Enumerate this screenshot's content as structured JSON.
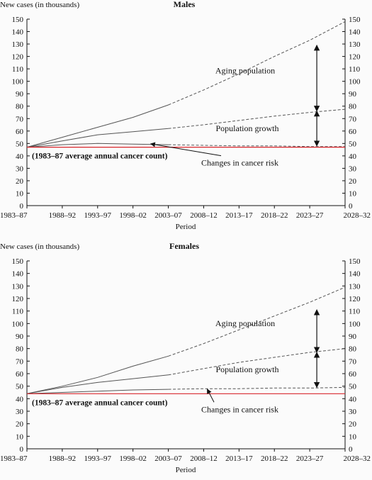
{
  "chart_data": [
    {
      "type": "line",
      "title": "Males",
      "ylabel": "New cases (in thousands)",
      "xlabel": "Period",
      "categories": [
        "1983–87",
        "1988–92",
        "1993–97",
        "1998–02",
        "2003–07",
        "2008–12",
        "2013–17",
        "2018–22",
        "2023–27",
        "2028–32"
      ],
      "ylim": [
        0,
        150
      ],
      "yticks": [
        0,
        10,
        20,
        30,
        40,
        50,
        60,
        70,
        80,
        90,
        100,
        110,
        120,
        130,
        140,
        150
      ],
      "series": [
        {
          "key": "aging",
          "style": "solid-then-dashed",
          "color": "#555555",
          "values": [
            47,
            55,
            63,
            71,
            81,
            93,
            106,
            120,
            133,
            148
          ]
        },
        {
          "key": "growth",
          "style": "solid-then-dashed",
          "color": "#555555",
          "values": [
            47,
            52,
            57,
            59.5,
            62,
            65,
            68.5,
            72,
            75,
            77.5
          ]
        },
        {
          "key": "risk",
          "style": "solid-then-dashed",
          "color": "#555555",
          "values": [
            47,
            49,
            50,
            49.5,
            49,
            48.5,
            48,
            48,
            47.5,
            47.5
          ]
        },
        {
          "key": "baseline",
          "style": "solid",
          "color": "#d9262c",
          "values": [
            47,
            47,
            47,
            47,
            47,
            47,
            47,
            47,
            47,
            47
          ]
        }
      ],
      "projection_start_index": 4,
      "annotations": {
        "aging": "Aging population",
        "growth": "Population growth",
        "risk": "Changes in cancer risk",
        "baseline": "(1983–87 average annual cancer count)"
      },
      "arrows": {
        "index": 8.2,
        "ends": [
          129,
          76,
          48
        ]
      }
    },
    {
      "type": "line",
      "title": "Females",
      "ylabel": "New cases (in thousands)",
      "xlabel": "Period",
      "categories": [
        "1983–87",
        "1988–92",
        "1993–97",
        "1998–02",
        "2003–07",
        "2008–12",
        "2013–17",
        "2018–22",
        "2023–27",
        "2028–32"
      ],
      "ylim": [
        0,
        150
      ],
      "yticks": [
        0,
        10,
        20,
        30,
        40,
        50,
        60,
        70,
        80,
        90,
        100,
        110,
        120,
        130,
        140,
        150
      ],
      "series": [
        {
          "key": "aging",
          "style": "solid-then-dashed",
          "color": "#555555",
          "values": [
            44,
            50,
            57,
            66,
            74,
            84,
            95,
            106,
            117,
            129
          ]
        },
        {
          "key": "growth",
          "style": "solid-then-dashed",
          "color": "#555555",
          "values": [
            44,
            49,
            53,
            56,
            59,
            64,
            69,
            73,
            77,
            80
          ]
        },
        {
          "key": "risk",
          "style": "solid-then-dashed",
          "color": "#555555",
          "values": [
            44,
            45,
            46,
            47,
            47.5,
            48,
            48,
            48.5,
            48.5,
            49
          ]
        },
        {
          "key": "baseline",
          "style": "solid",
          "color": "#d9262c",
          "values": [
            44,
            44,
            44,
            44,
            44,
            44,
            44,
            44,
            44,
            44
          ]
        }
      ],
      "projection_start_index": 4,
      "annotations": {
        "aging": "Aging population",
        "growth": "Population growth",
        "risk": "Changes in cancer risk",
        "baseline": "(1983–87 average annual cancer count)"
      },
      "arrows": {
        "index": 8.2,
        "ends": [
          111,
          77,
          49
        ]
      }
    }
  ]
}
